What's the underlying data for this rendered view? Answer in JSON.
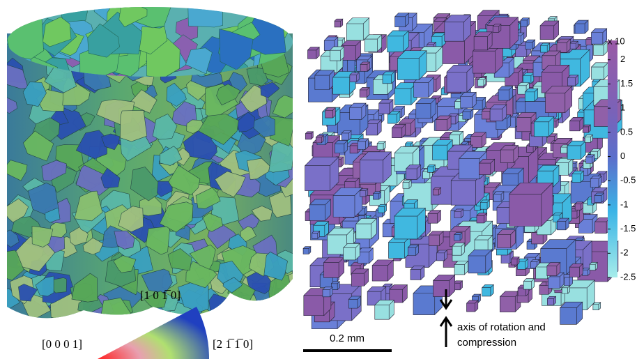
{
  "figure": {
    "ipf_key": {
      "top": "[1 0 1̅ 0]",
      "left": "[0 0 0 1]",
      "right": "[2 1̅ 1̅ 0]"
    },
    "scale_bar": "0.2 mm",
    "annotation": [
      "axis of rotation and",
      "compression"
    ],
    "colorbar": {
      "multiplier": "x 10",
      "lim": [
        -2.5,
        2.4
      ],
      "ticks": [
        2,
        1.5,
        1,
        0.5,
        0,
        -0.5,
        -1,
        -1.5,
        -2,
        -2.5
      ]
    }
  }
}
